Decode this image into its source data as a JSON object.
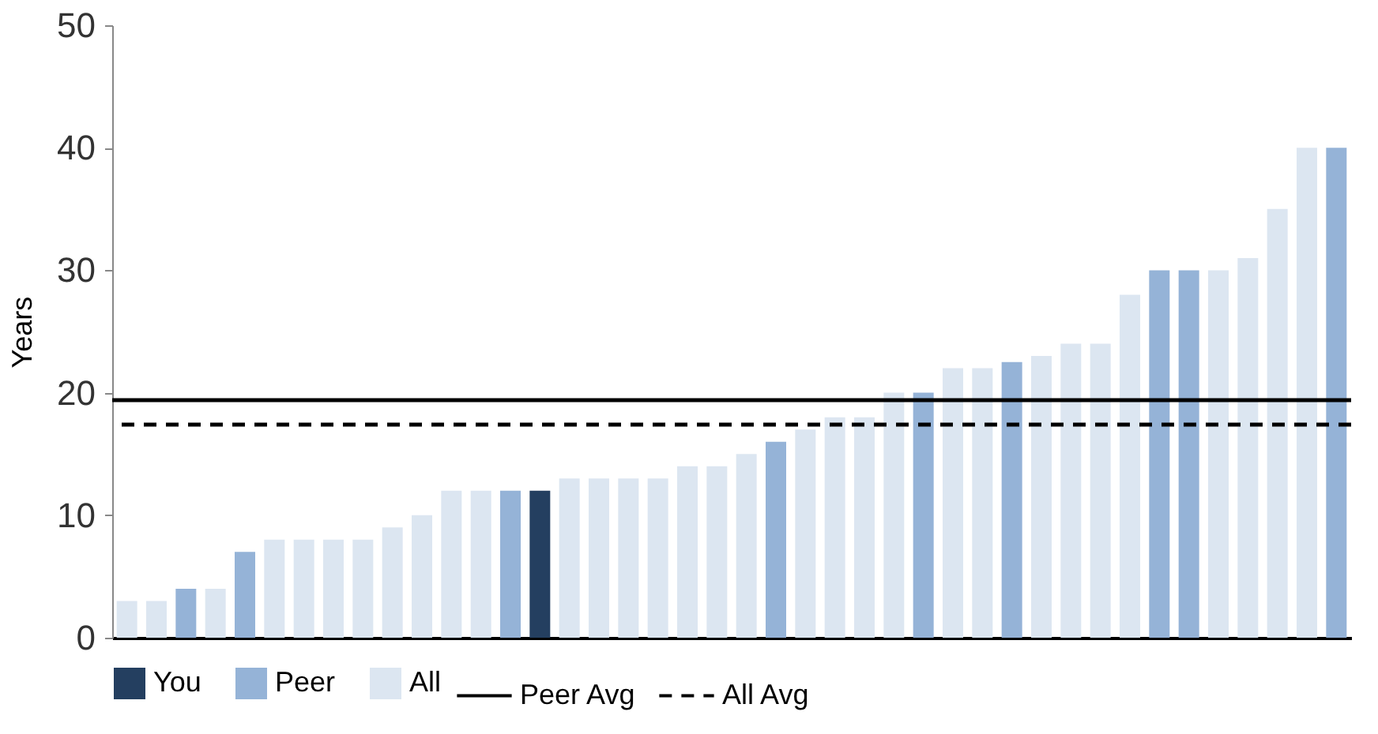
{
  "chart_data": {
    "type": "bar",
    "ylabel": "Years",
    "ylim": [
      0,
      50
    ],
    "yticks": [
      0,
      10,
      20,
      30,
      40,
      50
    ],
    "grid": false,
    "legend": "bottom",
    "categories": [
      null,
      null,
      null,
      null,
      null,
      null,
      null,
      null,
      null,
      null,
      null,
      null,
      null,
      null,
      null,
      null,
      null,
      null,
      null,
      null,
      null,
      null,
      null,
      null,
      null,
      null,
      null,
      null,
      null,
      null,
      null,
      null,
      null,
      null,
      null,
      null,
      null,
      null,
      null,
      null,
      null,
      null
    ],
    "series": [
      {
        "name": "You",
        "color": "#243f60",
        "values": [
          null,
          null,
          null,
          null,
          null,
          null,
          null,
          null,
          null,
          null,
          null,
          null,
          null,
          null,
          12,
          null,
          null,
          null,
          null,
          null,
          null,
          null,
          null,
          null,
          null,
          null,
          null,
          null,
          null,
          null,
          null,
          null,
          null,
          null,
          null,
          null,
          null,
          null,
          null,
          null,
          null,
          null
        ]
      },
      {
        "name": "Peer",
        "color": "#95b3d7",
        "values": [
          null,
          null,
          4,
          null,
          7,
          null,
          null,
          null,
          null,
          null,
          null,
          null,
          null,
          12,
          null,
          null,
          null,
          null,
          null,
          null,
          null,
          null,
          16,
          null,
          null,
          null,
          null,
          20,
          null,
          null,
          22.5,
          null,
          null,
          null,
          null,
          30,
          30,
          null,
          null,
          null,
          null,
          40
        ]
      },
      {
        "name": "All",
        "color": "#dce6f1",
        "values": [
          3,
          3,
          null,
          4,
          null,
          8,
          8,
          8,
          8,
          9,
          10,
          12,
          12,
          null,
          null,
          13,
          13,
          13,
          13,
          14,
          14,
          15,
          null,
          17,
          18,
          18,
          20,
          null,
          22,
          22,
          null,
          23,
          24,
          24,
          28,
          null,
          null,
          30,
          31,
          35,
          40,
          null
        ]
      }
    ],
    "ref_lines": [
      {
        "axis": "y",
        "value": 19.4,
        "label": "Peer Avg",
        "color": "#000000",
        "line_style": "solid"
      },
      {
        "axis": "y",
        "value": 17.4,
        "label": "All Avg",
        "color": "#000000",
        "line_style": "dashed"
      }
    ]
  }
}
